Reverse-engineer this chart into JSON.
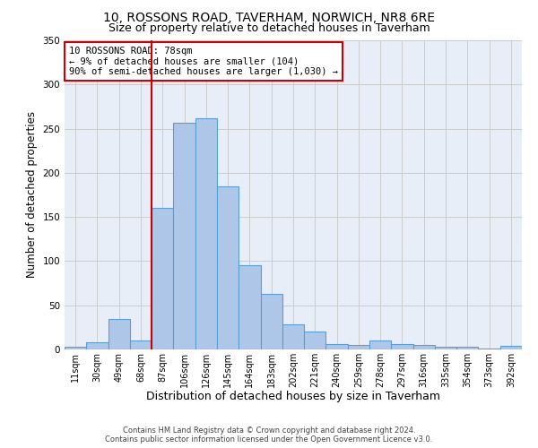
{
  "title": "10, ROSSONS ROAD, TAVERHAM, NORWICH, NR8 6RE",
  "subtitle": "Size of property relative to detached houses in Taverham",
  "xlabel": "Distribution of detached houses by size in Taverham",
  "ylabel": "Number of detached properties",
  "categories": [
    "11sqm",
    "30sqm",
    "49sqm",
    "68sqm",
    "87sqm",
    "106sqm",
    "126sqm",
    "145sqm",
    "164sqm",
    "183sqm",
    "202sqm",
    "221sqm",
    "240sqm",
    "259sqm",
    "278sqm",
    "297sqm",
    "316sqm",
    "335sqm",
    "354sqm",
    "373sqm",
    "392sqm"
  ],
  "values": [
    3,
    8,
    35,
    10,
    160,
    257,
    262,
    185,
    95,
    63,
    28,
    20,
    6,
    5,
    10,
    6,
    5,
    3,
    3,
    1,
    4
  ],
  "bar_color": "#aec6e8",
  "bar_edge_color": "#5a9fd4",
  "bar_linewidth": 0.8,
  "vline_color": "#cc0000",
  "annotation_title": "10 ROSSONS ROAD: 78sqm",
  "annotation_line1": "← 9% of detached houses are smaller (104)",
  "annotation_line2": "90% of semi-detached houses are larger (1,030) →",
  "annotation_box_color": "#cc0000",
  "annotation_bg_color": "#ffffff",
  "ylim": [
    0,
    350
  ],
  "yticks": [
    0,
    50,
    100,
    150,
    200,
    250,
    300,
    350
  ],
  "grid_color": "#cccccc",
  "bg_color": "#e8eef7",
  "footer_line1": "Contains HM Land Registry data © Crown copyright and database right 2024.",
  "footer_line2": "Contains public sector information licensed under the Open Government Licence v3.0.",
  "title_fontsize": 10,
  "subtitle_fontsize": 9,
  "tick_fontsize": 7,
  "ylabel_fontsize": 8.5,
  "xlabel_fontsize": 9,
  "annotation_fontsize": 7.5,
  "footer_fontsize": 6
}
